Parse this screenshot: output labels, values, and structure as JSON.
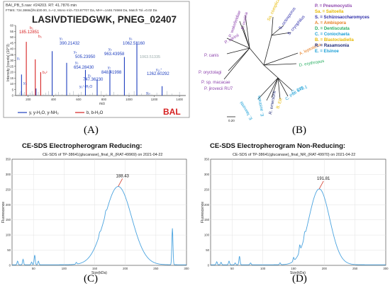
{
  "panel_labels": [
    "(A)",
    "(B)",
    "(C)",
    "(D)"
  ],
  "colors": {
    "blue": "#1f3fbf",
    "red": "#d62020",
    "trace": "#4aa3df",
    "peak_arrow": "#d23a2a"
  },
  "panelA": {
    "header": [
      "BAI_PB_5.raw: #24203. RT: 41.7876 min",
      "FTMS: 724.3866@hcd30.00, z=+2, Mono m/z=723.87707 Da, MH+=1446.74666 Da, Match Tol.=0.02 Da"
    ],
    "title": "LASIVDTIEDGWK, PNEG_02407",
    "ylabel": "Intensity [counts] (10^3)",
    "xlabel": "m/z",
    "yticks": [
      "0",
      "5",
      "10",
      "15",
      "20",
      "25",
      "30",
      "35",
      "40",
      "45",
      "50",
      "55",
      "60"
    ],
    "xticks": [
      "200",
      "400",
      "600",
      "800",
      "1000",
      "1200",
      "1400"
    ],
    "tag": "BAL",
    "legend": [
      "y, y-H₂O, y-NH₃",
      "b, b-H₂O"
    ],
    "peak_labels": [
      {
        "text": "185.12851",
        "color": "red"
      },
      {
        "text": "390.21432",
        "color": "blue"
      },
      {
        "text": "505.23950",
        "color": "blue"
      },
      {
        "text": "654.28430",
        "color": "blue"
      },
      {
        "text": "747.36230",
        "color": "blue"
      },
      {
        "text": "848.41998",
        "color": "blue"
      },
      {
        "text": "963.43958",
        "color": "blue"
      },
      {
        "text": "1062.51160",
        "color": "blue"
      },
      {
        "text": "1063.51335",
        "color": "gray"
      },
      {
        "text": "1262.60292",
        "color": "blue"
      }
    ],
    "ion_labels": [
      {
        "text": "b₂",
        "color": "red"
      },
      {
        "text": "b₃",
        "color": "red"
      },
      {
        "text": "b₄²",
        "color": "red"
      },
      {
        "text": "y₁",
        "color": "blue"
      },
      {
        "text": "y₂",
        "color": "blue"
      },
      {
        "text": "y₃",
        "color": "blue"
      },
      {
        "text": "y₄",
        "color": "blue"
      },
      {
        "text": "y₅",
        "color": "blue"
      },
      {
        "text": "y₆",
        "color": "blue"
      },
      {
        "text": "y₇",
        "color": "blue"
      },
      {
        "text": "y₈",
        "color": "blue"
      },
      {
        "text": "y₉",
        "color": "blue"
      },
      {
        "text": "y₁₀",
        "color": "blue"
      },
      {
        "text": "y₁₁⁺",
        "color": "blue"
      },
      {
        "text": "y₅⁺-H₂O",
        "color": "blue"
      }
    ]
  },
  "panelB": {
    "legend": [
      {
        "text": "P. = Pneumocystis",
        "color": "#8e44ad"
      },
      {
        "text": "Sa. = Saitoella",
        "color": "#e6b800"
      },
      {
        "text": "S. = Schizosaccharomyces",
        "color": "#2a2aa8"
      },
      {
        "text": "A. = Ambispora",
        "color": "#e67e22"
      },
      {
        "text": "D. = Dentiscutata",
        "color": "#27ae60"
      },
      {
        "text": "C. = Coniochaeta",
        "color": "#1a9fd6"
      },
      {
        "text": "B. = Blastocladiella",
        "color": "#e6b800"
      },
      {
        "text": "R. = Rasamsonia",
        "color": "#1e2a78"
      },
      {
        "text": "E. = Elsinoe",
        "color": "#1a9fd6"
      }
    ],
    "taxa": [
      {
        "text": "P. wakefieldiae",
        "color": "#8e44ad"
      },
      {
        "text": "P. murina",
        "color": "#8e44ad"
      },
      {
        "text": "P. carinii",
        "color": "#8e44ad"
      },
      {
        "text": "P. canis",
        "color": "#8e44ad"
      },
      {
        "text": "P. oryctolagi",
        "color": "#8e44ad"
      },
      {
        "text": "P. sp. macacae",
        "color": "#8e44ad"
      },
      {
        "text": "P. jirovecii RU7",
        "color": "#8e44ad"
      },
      {
        "text": "Sa. complicata",
        "color": "#e6b800"
      },
      {
        "text": "S. octosporus",
        "color": "#2a2aa8"
      },
      {
        "text": "S. cryophilus",
        "color": "#2a2aa8"
      },
      {
        "text": "A. leptoticha",
        "color": "#e67e22"
      },
      {
        "text": "D. erythropus",
        "color": "#27ae60"
      },
      {
        "text": "C. 2T2.1",
        "color": "#1a9fd6"
      },
      {
        "text": "C. PMI 546",
        "color": "#1a9fd6"
      },
      {
        "text": "B. ER",
        "color": "#e6b800"
      },
      {
        "text": "R. emersonii",
        "color": "#1e2a78"
      },
      {
        "text": "E. australis",
        "color": "#1a9fd6"
      },
      {
        "text": "E. fawcettii",
        "color": "#1a9fd6"
      }
    ],
    "scale_label": "0.20"
  },
  "panelC": {
    "heading": "CE-SDS Electropherogram Reducing:",
    "chart_title": "CE-SDS of TP-38641(glucanase)_final_R_(RAT-49969) on 2021-04-22",
    "xlabel": "Size(kDa)",
    "ylabel": "Fluorescence",
    "peak_label": "188.43"
  },
  "panelD": {
    "heading": "CE-SDS Electropherogram Non-Reducing:",
    "chart_title": "CE-SDS of TP-38641(glucanase)_final_NR_(RAT-49970) on 2021-04-22",
    "xlabel": "Size(kDa)",
    "ylabel": "Fluorescence",
    "peak_label": "191.81"
  },
  "chart_data": [
    {
      "type": "bar",
      "title": "LASIVDTIEDGWK, PNEG_02407",
      "xlabel": "m/z",
      "ylabel": "Intensity [counts] (10^3)",
      "xlim": [
        100,
        1450
      ],
      "ylim": [
        0,
        60
      ],
      "series": [
        {
          "name": "y, y-H₂O, y-NH₃",
          "x": [
            147,
            262,
            390,
            505,
            654,
            747,
            848,
            963,
            1062,
            1262
          ],
          "values": [
            18,
            6,
            38,
            28,
            22,
            14,
            22,
            33,
            46,
            8
          ]
        },
        {
          "name": "b, b-H₂O",
          "x": [
            185,
            256,
            299
          ],
          "values": [
            46,
            31,
            20
          ]
        }
      ]
    },
    {
      "type": "line",
      "title": "CE-SDS of TP-38641(glucanase)_final_R_(RAT-49969) on 2021-04-22",
      "xlabel": "Size(kDa)",
      "ylabel": "Fluorescence",
      "xlim": [
        15,
        300
      ],
      "ylim": [
        0,
        350
      ],
      "x_ticks": [
        50,
        100,
        150,
        200,
        250,
        300
      ],
      "y_ticks": [
        0,
        50,
        100,
        150,
        200,
        250,
        300,
        350
      ],
      "grid": true,
      "peak": {
        "x": 188.43,
        "y": 258,
        "width": 22
      },
      "baseline_bumps": [
        [
          24,
          12
        ],
        [
          33,
          18
        ],
        [
          47,
          9
        ],
        [
          52,
          32
        ],
        [
          58,
          12
        ],
        [
          120,
          6
        ],
        [
          158,
          8
        ],
        [
          168,
          10
        ],
        [
          277,
          120
        ]
      ],
      "series": [
        {
          "values_note": ""
        }
      ]
    },
    {
      "type": "line",
      "title": "CE-SDS of TP-38641(glucanase)_final_NR_(RAT-49970) on 2021-04-22",
      "xlabel": "Size(kDa)",
      "ylabel": "Fluorescence",
      "xlim": [
        15,
        300
      ],
      "ylim": [
        0,
        350
      ],
      "x_ticks": [
        50,
        100,
        150,
        200,
        250,
        300
      ],
      "y_ticks": [
        0,
        50,
        100,
        150,
        200,
        250,
        300,
        350
      ],
      "grid": true,
      "peak": {
        "x": 191.81,
        "y": 250,
        "width": 17
      },
      "baseline_bumps": [
        [
          25,
          10
        ],
        [
          32,
          8
        ],
        [
          45,
          12
        ],
        [
          55,
          6
        ],
        [
          62,
          28
        ],
        [
          80,
          6
        ],
        [
          128,
          6
        ],
        [
          150,
          12
        ],
        [
          160,
          22
        ],
        [
          168,
          14
        ]
      ],
      "series": [
        {
          "values_note": ""
        }
      ]
    }
  ]
}
